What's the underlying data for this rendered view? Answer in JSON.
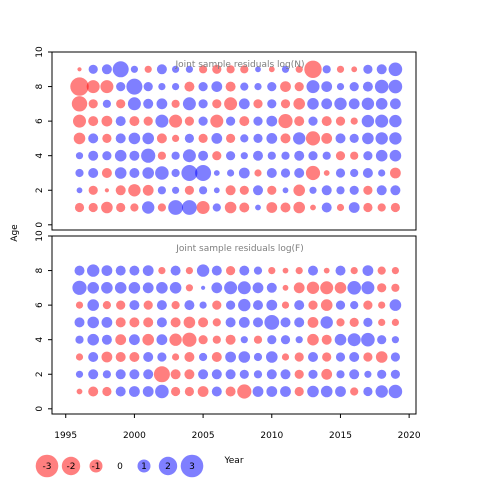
{
  "chart_data": [
    {
      "type": "scatter",
      "title": "Joint sample residuals log(N)",
      "ylabel": "Age",
      "xlim": [
        1994,
        2020.5
      ],
      "ylim": [
        -0.3,
        10
      ],
      "xticks": [
        1995,
        2000,
        2005,
        2010,
        2015,
        2020
      ],
      "yticks": [
        0,
        2,
        4,
        6,
        8,
        10
      ],
      "years": [
        1996,
        1997,
        1998,
        1999,
        2000,
        2001,
        2002,
        2003,
        2004,
        2005,
        2006,
        2007,
        2008,
        2009,
        2010,
        2011,
        2012,
        2013,
        2014,
        2015,
        2016,
        2017,
        2018,
        2019
      ],
      "ages": [
        1,
        2,
        3,
        4,
        5,
        6,
        7,
        8,
        9
      ],
      "residuals": {
        "9": [
          0.1,
          -0.5,
          -0.6,
          -1.5,
          -0.3,
          0.3,
          -0.6,
          -0.3,
          -0.3,
          0.4,
          0.5,
          0.4,
          0.4,
          -0.2,
          0.2,
          -0.3,
          0.3,
          1.8,
          -0.4,
          0.3,
          0.2,
          -0.5,
          -0.6,
          -1.1
        ],
        "8": [
          2.0,
          1.0,
          1.0,
          -0.5,
          -1.5,
          -0.5,
          -0.3,
          -0.3,
          0.6,
          -0.5,
          -0.7,
          0.6,
          -0.4,
          -0.3,
          -0.5,
          0.7,
          0.5,
          -1.0,
          -0.7,
          -0.3,
          -0.5,
          -0.6,
          -1.1,
          -1.1
        ],
        "7": [
          1.4,
          0.5,
          -0.4,
          0.5,
          -1.0,
          -0.6,
          -0.7,
          0.4,
          -1.0,
          -0.5,
          0.5,
          1.0,
          -0.7,
          0.5,
          -0.5,
          0.5,
          0.8,
          -0.8,
          -0.7,
          -0.9,
          -0.7,
          -0.9,
          -0.8,
          -0.7
        ],
        "6": [
          1.0,
          0.6,
          0.7,
          -0.6,
          0.6,
          0.5,
          -1.0,
          1.0,
          0.5,
          -0.5,
          1.0,
          -0.5,
          0.6,
          -0.5,
          -0.7,
          1.2,
          0.6,
          -0.5,
          0.6,
          0.5,
          0.3,
          -0.9,
          -1.0,
          -0.9
        ],
        "5": [
          0.8,
          -0.6,
          0.5,
          -0.6,
          -0.8,
          -0.8,
          0.6,
          0.3,
          -0.5,
          0.5,
          -0.7,
          0.5,
          -0.4,
          -0.5,
          -0.7,
          0.6,
          -0.9,
          1.2,
          0.7,
          -0.6,
          -0.5,
          -0.8,
          -0.9,
          -0.9
        ],
        "4": [
          -0.3,
          -0.6,
          -0.5,
          -0.8,
          -0.6,
          -1.2,
          0.4,
          -0.4,
          -1.0,
          -0.6,
          0.5,
          -0.5,
          -0.3,
          -0.6,
          -0.4,
          -0.4,
          -0.6,
          -0.5,
          -0.4,
          0.5,
          0.4,
          -0.5,
          -0.8,
          -0.8
        ],
        "3": [
          -0.4,
          -0.6,
          0.6,
          -0.8,
          -0.6,
          -0.8,
          -1.1,
          -0.4,
          -1.5,
          -1.5,
          -0.2,
          -0.3,
          -0.7,
          0.3,
          -0.6,
          -0.5,
          -0.6,
          1.2,
          0.2,
          -0.5,
          -0.4,
          -0.6,
          -0.3,
          0.7
        ],
        "2": [
          -0.2,
          0.5,
          0.1,
          0.6,
          0.9,
          0.7,
          -0.4,
          -0.3,
          0.5,
          -0.4,
          -0.2,
          0.6,
          0.5,
          -0.6,
          0.5,
          -0.2,
          0.8,
          -0.3,
          -0.6,
          -0.4,
          -0.5,
          0.5,
          -0.6,
          -0.6
        ],
        "1": [
          0.5,
          0.5,
          0.8,
          0.5,
          0.4,
          -0.9,
          0.4,
          -1.3,
          -1.3,
          1.0,
          -0.4,
          0.8,
          0.6,
          -0.2,
          0.7,
          0.6,
          0.8,
          0.2,
          -0.6,
          0.3,
          -0.7,
          0.5,
          0.4,
          0.5
        ]
      }
    },
    {
      "type": "scatter",
      "title": "Joint sample residuals log(F)",
      "ylabel": "Age",
      "xlabel": "Year",
      "xlim": [
        1994,
        2020.5
      ],
      "ylim": [
        -0.3,
        10
      ],
      "xticks": [
        1995,
        2000,
        2005,
        2010,
        2015,
        2020
      ],
      "yticks": [
        0,
        2,
        4,
        6,
        8,
        10
      ],
      "years": [
        1996,
        1997,
        1998,
        1999,
        2000,
        2001,
        2002,
        2003,
        2004,
        2005,
        2006,
        2007,
        2008,
        2009,
        2010,
        2011,
        2012,
        2013,
        2014,
        2015,
        2016,
        2017,
        2018,
        2019
      ],
      "ages": [
        1,
        2,
        3,
        4,
        5,
        6,
        7,
        8
      ],
      "residuals": {
        "8": [
          -0.6,
          -0.9,
          -0.7,
          -0.6,
          -0.6,
          -0.7,
          0.3,
          -0.6,
          0.3,
          -0.9,
          -0.6,
          0.5,
          -0.6,
          -0.4,
          0.3,
          0.2,
          0.3,
          -0.6,
          0.2,
          -0.6,
          0.3,
          -0.7,
          0.4,
          0.3
        ],
        "7": [
          -1.2,
          -0.8,
          -0.8,
          -0.8,
          -0.8,
          -0.7,
          -0.8,
          -0.8,
          0.3,
          -0.1,
          -0.7,
          -1.0,
          -1.0,
          -0.7,
          -0.6,
          0.2,
          0.7,
          0.9,
          1.0,
          0.8,
          -1.1,
          -1.0,
          0.5,
          0.4
        ],
        "6": [
          0.3,
          -0.8,
          0.4,
          0.5,
          -0.6,
          0.5,
          -0.6,
          0.4,
          -0.6,
          -0.3,
          0.5,
          -0.5,
          -0.9,
          -0.6,
          -0.7,
          0.3,
          -0.6,
          0.5,
          0.8,
          -0.5,
          -0.4,
          0.5,
          0.3,
          -0.8
        ],
        "5": [
          -0.6,
          -0.8,
          -0.7,
          0.6,
          0.6,
          0.6,
          -0.6,
          0.6,
          0.8,
          0.6,
          0.4,
          -0.6,
          -0.7,
          -0.6,
          -1.3,
          -0.6,
          -0.6,
          0.7,
          -0.9,
          0.4,
          0.5,
          -0.5,
          0.3,
          0.3
        ],
        "4": [
          -0.4,
          -0.8,
          -0.6,
          0.7,
          -0.7,
          0.8,
          -0.7,
          0.9,
          1.2,
          0.5,
          0.4,
          0.6,
          -0.3,
          0.4,
          -0.5,
          -0.5,
          -0.3,
          0.8,
          0.6,
          -0.8,
          -1.0,
          -1.1,
          -0.5,
          -0.3
        ],
        "3": [
          0.3,
          -0.6,
          0.7,
          0.6,
          0.6,
          -0.6,
          -0.5,
          0.3,
          0.6,
          -0.4,
          0.6,
          -0.7,
          -0.8,
          -0.4,
          -0.8,
          0.3,
          0.5,
          -0.6,
          0.5,
          -0.5,
          -0.6,
          0.5,
          0.8,
          -0.5
        ],
        "2": [
          -0.3,
          -0.6,
          -0.4,
          -0.6,
          -0.6,
          -0.6,
          1.5,
          0.6,
          0.6,
          -0.6,
          -0.6,
          -0.6,
          -0.5,
          -0.4,
          -0.6,
          -0.6,
          0.5,
          -0.5,
          0.7,
          -0.4,
          -0.6,
          -0.3,
          -0.5,
          -0.5
        ],
        "1": [
          0.2,
          0.6,
          0.5,
          -0.6,
          -0.7,
          -0.7,
          -1.1,
          0.5,
          0.5,
          0.7,
          -0.6,
          0.6,
          1.2,
          -0.7,
          -0.7,
          -0.7,
          0.5,
          -0.8,
          -0.8,
          -0.7,
          0.4,
          -0.5,
          -0.9,
          -1.1
        ]
      }
    }
  ],
  "legend": {
    "items": [
      {
        "label": "-3",
        "value": -3
      },
      {
        "label": "-2",
        "value": -2
      },
      {
        "label": "-1",
        "value": -1
      },
      {
        "label": "0",
        "value": 0
      },
      {
        "label": "1",
        "value": 1
      },
      {
        "label": "2",
        "value": 2
      },
      {
        "label": "3",
        "value": 3
      }
    ]
  },
  "colors": {
    "positive": "#ff0000",
    "negative": "#0000ff",
    "panel_title": "#7f7f7f"
  }
}
